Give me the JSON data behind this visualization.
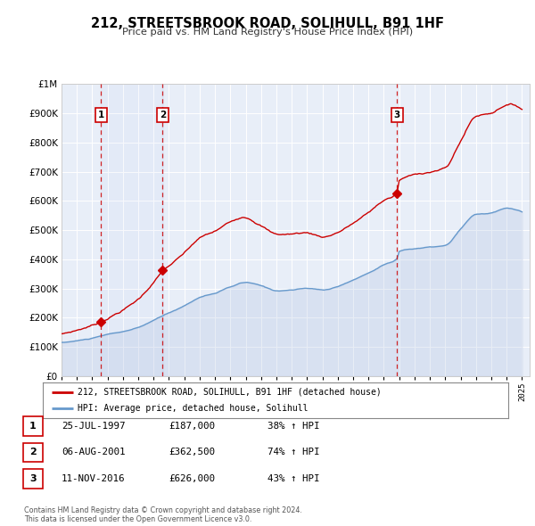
{
  "title": "212, STREETSBROOK ROAD, SOLIHULL, B91 1HF",
  "subtitle": "Price paid vs. HM Land Registry's House Price Index (HPI)",
  "ylim": [
    0,
    1000000
  ],
  "xlim_start": 1995.0,
  "xlim_end": 2025.5,
  "bg_color": "#ffffff",
  "plot_bg_color": "#e8eef8",
  "grid_color": "#ffffff",
  "red_line_color": "#cc0000",
  "blue_line_color": "#6699cc",
  "blue_fill_color": "#aabbdd",
  "sale_marker_color": "#cc0000",
  "dashed_vline_color": "#cc0000",
  "annotation_box_color": "#cc0000",
  "legend_label_red": "212, STREETSBROOK ROAD, SOLIHULL, B91 1HF (detached house)",
  "legend_label_blue": "HPI: Average price, detached house, Solihull",
  "footer_text": "Contains HM Land Registry data © Crown copyright and database right 2024.\nThis data is licensed under the Open Government Licence v3.0.",
  "sale_dates": [
    1997.56,
    2001.59,
    2016.86
  ],
  "sale_prices": [
    187000,
    362500,
    626000
  ],
  "sale_labels": [
    "1",
    "2",
    "3"
  ],
  "sale_date_strs": [
    "25-JUL-1997",
    "06-AUG-2001",
    "11-NOV-2016"
  ],
  "sale_price_strs": [
    "£187,000",
    "£362,500",
    "£626,000"
  ],
  "sale_pct_strs": [
    "38% ↑ HPI",
    "74% ↑ HPI",
    "43% ↑ HPI"
  ]
}
